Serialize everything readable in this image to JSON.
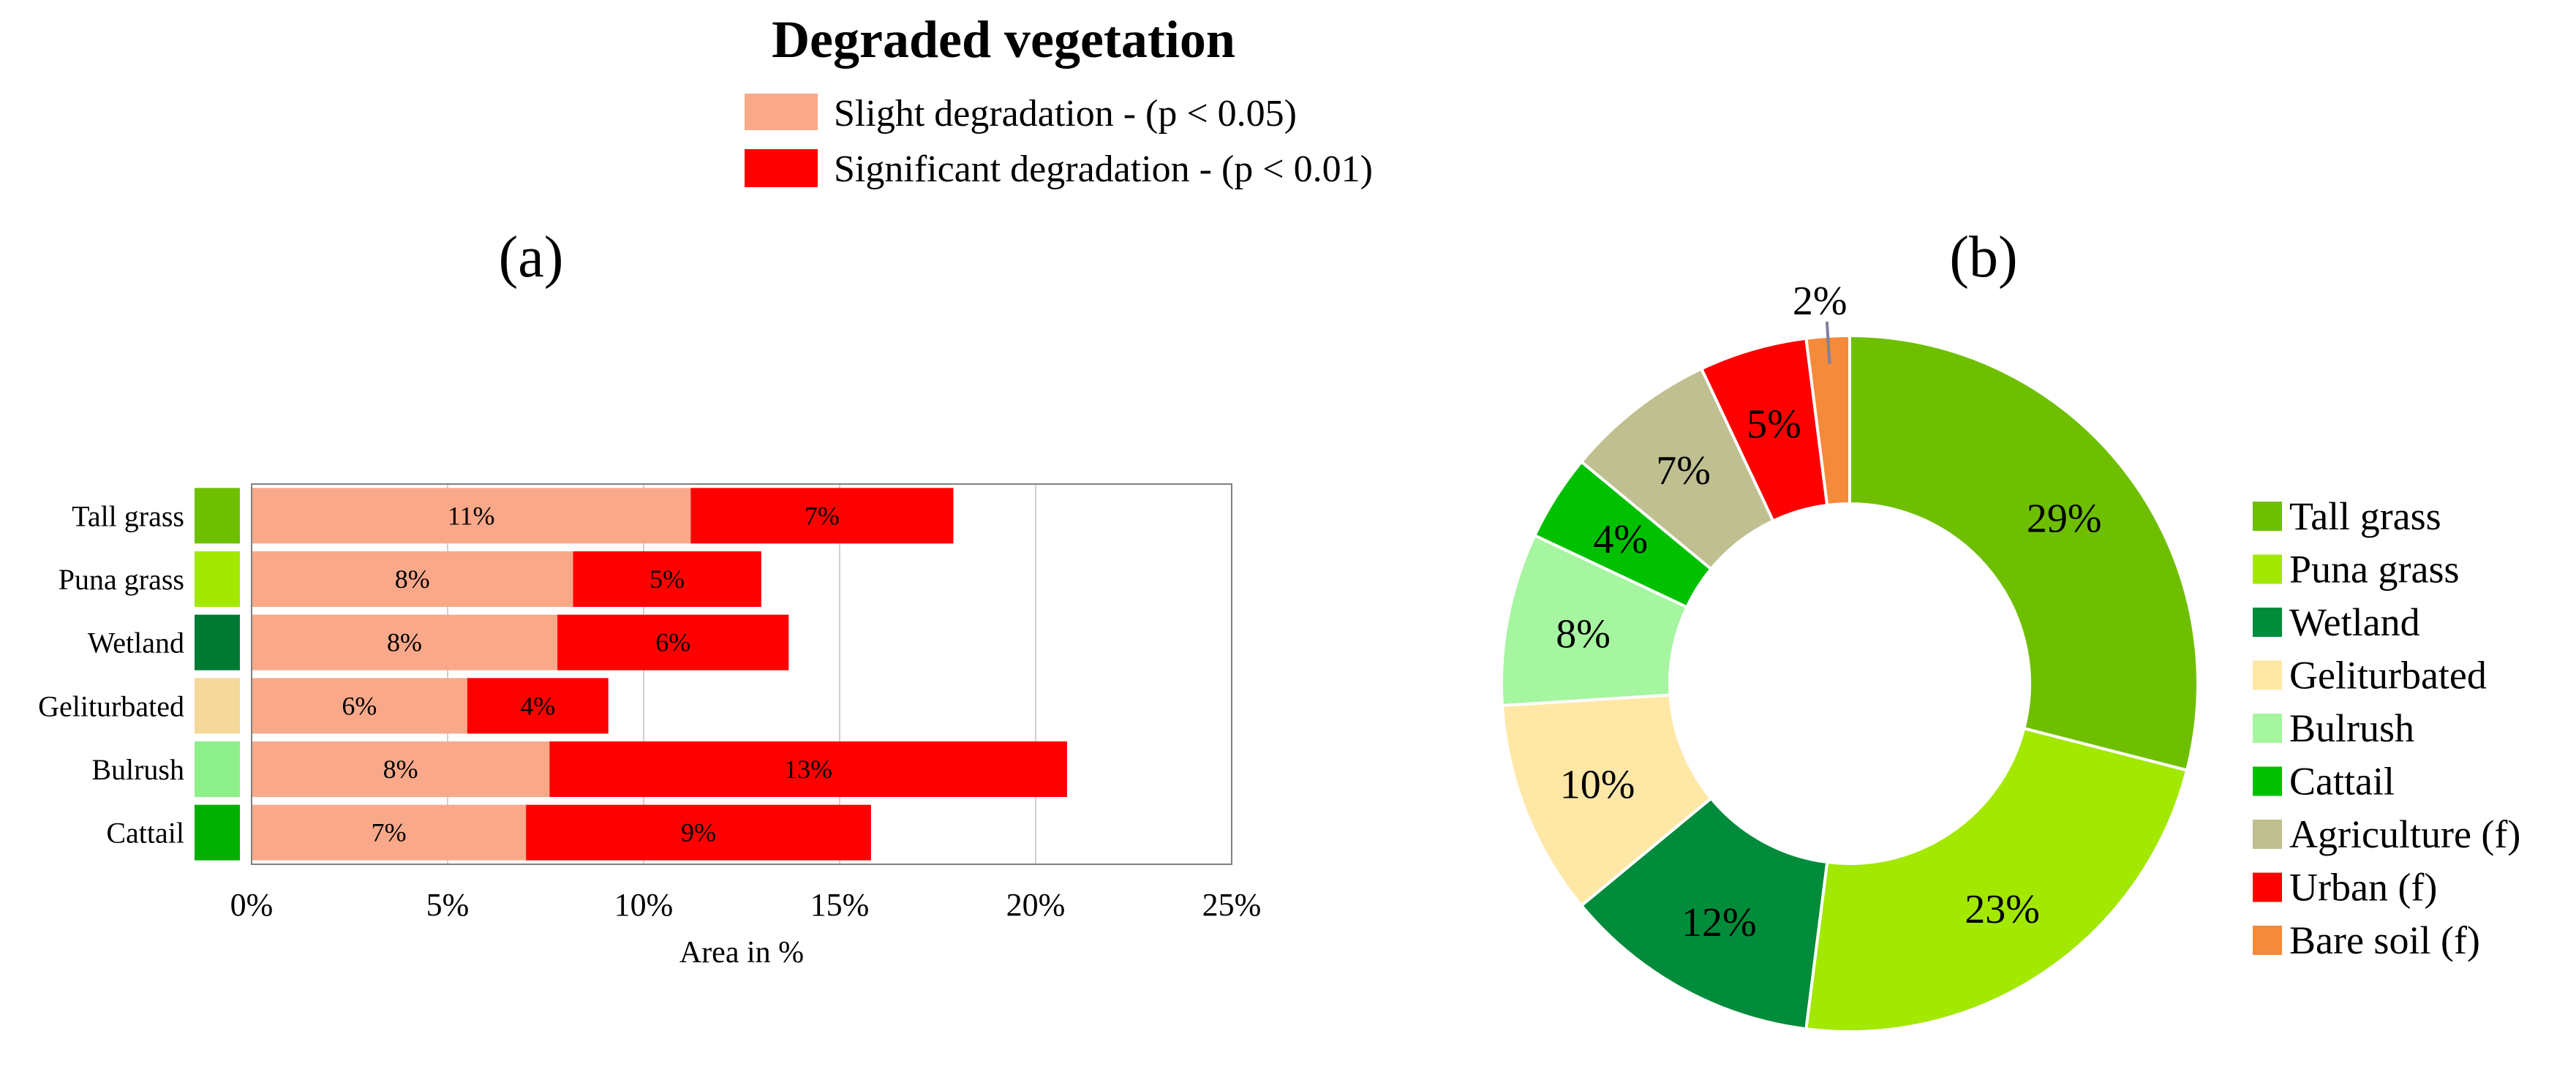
{
  "figure_title": "Degraded vegetation",
  "top_legend": [
    {
      "label": "Slight degradation - (p < 0.05)",
      "color": "#F9A98A"
    },
    {
      "label": "Significant degradation - (p < 0.01)",
      "color": "#FF0000"
    }
  ],
  "panel_a_label": "(a)",
  "panel_b_label": "(b)",
  "chart_data": [
    {
      "type": "bar",
      "orientation": "horizontal",
      "stacked": true,
      "title": "",
      "xlabel": "Area in %",
      "ylabel": "",
      "xlim": [
        0,
        25
      ],
      "xticks": [
        "0%",
        "5%",
        "10%",
        "15%",
        "20%",
        "25%"
      ],
      "categories": [
        "Tall grass",
        "Puna grass",
        "Wetland",
        "Geliturbated",
        "Bulrush",
        "Cattail"
      ],
      "category_colors": [
        "#6EBF00",
        "#A2E800",
        "#007A33",
        "#F5D99A",
        "#8DF08A",
        "#00B000"
      ],
      "series": [
        {
          "name": "Slight degradation - (p < 0.05)",
          "color": "#F9A98A",
          "values": [
            11.2,
            8.2,
            7.8,
            5.5,
            7.6,
            7.0
          ],
          "labels": [
            "11%",
            "8%",
            "8%",
            "6%",
            "8%",
            "7%"
          ]
        },
        {
          "name": "Significant degradation - (p < 0.01)",
          "color": "#FF0000",
          "values": [
            6.7,
            4.8,
            5.9,
            3.6,
            13.2,
            8.8
          ],
          "labels": [
            "7%",
            "5%",
            "6%",
            "4%",
            "13%",
            "9%"
          ]
        }
      ],
      "grid": "vertical"
    },
    {
      "type": "pie",
      "donut": true,
      "title": "",
      "legend_position": "right",
      "categories": [
        "Tall grass",
        "Puna grass",
        "Wetland",
        "Geliturbated",
        "Bulrush",
        "Cattail",
        "Agriculture (f)",
        "Urban (f)",
        "Bare soil (f)"
      ],
      "values": [
        29,
        23,
        12,
        10,
        8,
        4,
        7,
        5,
        2
      ],
      "labels": [
        "29%",
        "23%",
        "12%",
        "10%",
        "8%",
        "4%",
        "7%",
        "5%",
        "2%"
      ],
      "colors": [
        "#6EBF00",
        "#A2E800",
        "#008C3A",
        "#FFE7A6",
        "#A6F5A0",
        "#00C000",
        "#BFBF90",
        "#FF0000",
        "#F58A3A"
      ]
    }
  ]
}
